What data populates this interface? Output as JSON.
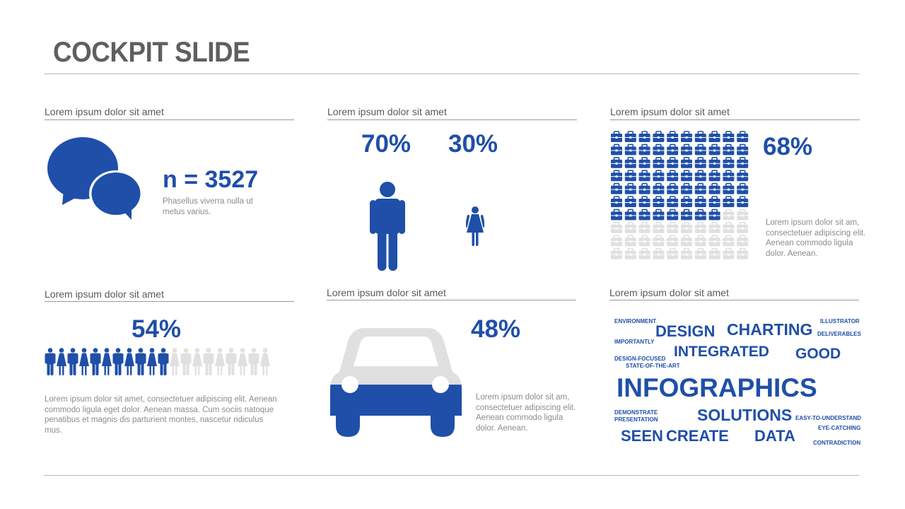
{
  "slide": {
    "title": "COCKPIT SLIDE"
  },
  "colors": {
    "accent": "#1f4fa8",
    "inactive": "#e0e0e0",
    "title": "#5f5f5f"
  },
  "sections": {
    "s1": {
      "label": "Lorem ipsum dolor sit amet",
      "stat": "n = 3527",
      "text": "Phasellus viverra nulla ut metus varius.",
      "icon": "speech-bubbles-icon"
    },
    "s2": {
      "label": "Lorem ipsum dolor sit amet",
      "male_pct": "70%",
      "female_pct": "30%",
      "icons": [
        "man-icon",
        "woman-icon"
      ]
    },
    "s3": {
      "label": "Lorem ipsum dolor sit amet",
      "pct": "68%",
      "filled_fraction": 0.68,
      "text": "Lorem ipsum dolor sit am, consectetuer adipiscing elit. Aenean commodo ligula dolor. Aenean.",
      "icon": "briefcase-icon"
    },
    "s4": {
      "label": "Lorem ipsum dolor sit amet",
      "pct": "54%",
      "filled_fraction": 0.54,
      "text": "Lorem ipsum dolor sit amet, consectetuer adipiscing elit. Aenean commodo ligula eget dolor. Aenean massa. Cum sociis natoque penatibus et magnis dis parturient montes, nascetur ridiculus mus.",
      "icon": "person-icon"
    },
    "s5": {
      "label": "Lorem ipsum dolor sit amet",
      "pct": "48%",
      "filled_fraction": 0.48,
      "text": "Lorem ipsum dolor sit am, consectetuer adipiscing elit. Aenean commodo ligula dolor. Aenean.",
      "icon": "car-icon"
    },
    "s6": {
      "label": "Lorem ipsum dolor sit amet",
      "words": {
        "environment": "ENVIRONMENT",
        "design": "DESIGN",
        "charting": "CHARTING",
        "illustrator": "ILLUSTRATOR",
        "deliverables": "DELIVERABLES",
        "importantly": "IMPORTANTLY",
        "integrated": "INTEGRATED",
        "good": "GOOD",
        "design_focused": "DESIGN-FOCUSED",
        "state_of_the_art": "STATE-OF-THE-ART",
        "infographics": "INFOGRAPHICS",
        "demonstrate": "DEMONSTRATE",
        "presentation": "PRESENTATION",
        "solutions": "SOLUTIONS",
        "easy_to_understand": "EASY-TO-UNDERSTAND",
        "eye_catching": "EYE-CATCHING",
        "seen": "SEEN",
        "create": "CREATE",
        "data": "DATA",
        "contradiction": "CONTRADICTION"
      }
    }
  }
}
